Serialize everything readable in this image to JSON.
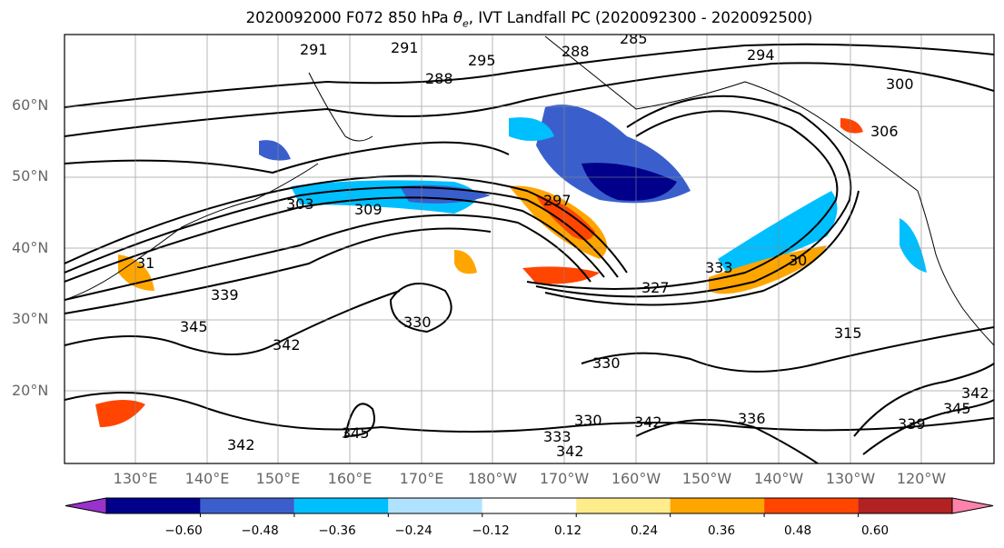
{
  "title": {
    "prefix": "2020092000 F072 850 hPa ",
    "symbol": "θ",
    "subscript": "e",
    "suffix": ", IVT Landfall PC (2020092300 - 2020092500)"
  },
  "map": {
    "lat_ticks": [
      "60°N",
      "50°N",
      "40°N",
      "30°N",
      "20°N"
    ],
    "lon_ticks": [
      "130°E",
      "140°E",
      "150°E",
      "160°E",
      "170°E",
      "180°W",
      "170°W",
      "160°W",
      "150°W",
      "140°W",
      "130°W",
      "120°W"
    ],
    "contour_labels": [
      "291",
      "291",
      "295",
      "288",
      "285",
      "288",
      "294",
      "300",
      "306",
      "303",
      "309",
      "297",
      "31",
      "339",
      "345",
      "342",
      "330",
      "333",
      "327",
      "30",
      "315",
      "330",
      "342",
      "336",
      "339",
      "345",
      "342",
      "333",
      "330",
      "342",
      "345",
      "342"
    ]
  },
  "colorbar": {
    "colors": [
      "#9932cc",
      "#00008b",
      "#3a5fcd",
      "#00bfff",
      "#b0e2ff",
      "#ffffff",
      "#ffec8b",
      "#ffa500",
      "#ff4500",
      "#b22222",
      "#ff82ab"
    ],
    "tick_labels": [
      "−0.60",
      "−0.48",
      "−0.36",
      "−0.24",
      "−0.12",
      "0.12",
      "0.24",
      "0.36",
      "0.48",
      "0.60"
    ]
  }
}
